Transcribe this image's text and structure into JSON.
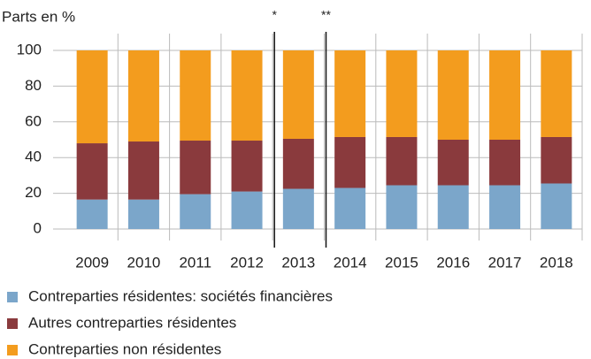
{
  "chart_data": {
    "type": "stacked_bar",
    "ylabel": "Parts en %",
    "categories": [
      "2009",
      "2010",
      "2011",
      "2012",
      "2013",
      "2014",
      "2015",
      "2016",
      "2017",
      "2018"
    ],
    "series": [
      {
        "name": "Contreparties résidentes: sociétés financières",
        "color": "#7ba6ca",
        "values": [
          16.5,
          16.5,
          19.5,
          21,
          22.5,
          23,
          24.5,
          24.5,
          24.5,
          25.5
        ]
      },
      {
        "name": "Autres contreparties résidentes",
        "color": "#8a3a3d",
        "values": [
          31.5,
          32.5,
          30,
          28.5,
          28,
          28.5,
          27,
          25.5,
          25.5,
          26
        ]
      },
      {
        "name": "Contreparties non résidentes",
        "color": "#f39c1e",
        "values": [
          52,
          51,
          50.5,
          50.5,
          49.5,
          48.5,
          48.5,
          50,
          50,
          48.5
        ]
      }
    ],
    "annotations": [
      {
        "text": "*",
        "after": "2012"
      },
      {
        "text": "**",
        "after": "2013"
      }
    ],
    "ylim": [
      0,
      100
    ],
    "yticks": [
      0,
      20,
      40,
      60,
      80,
      100
    ],
    "grid": true
  }
}
